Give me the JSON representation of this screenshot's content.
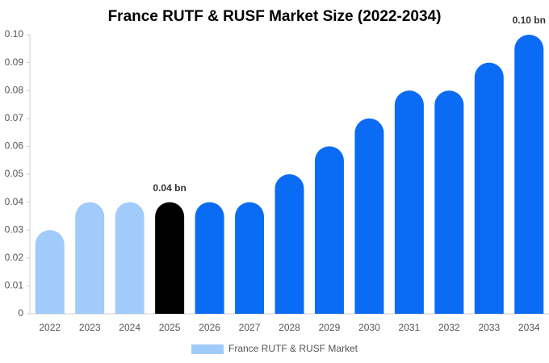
{
  "chart_data": {
    "type": "bar",
    "title": "France RUTF & RUSF Market Size (2022-2034)",
    "categories": [
      "2022",
      "2023",
      "2024",
      "2025",
      "2026",
      "2027",
      "2028",
      "2029",
      "2030",
      "2031",
      "2032",
      "2033",
      "2034"
    ],
    "series": [
      {
        "name": "France RUTF & RUSF Market",
        "color": "#a0cbfb",
        "values": [
          0.03,
          0.04,
          0.04,
          0.04,
          0.04,
          0.04,
          0.05,
          0.06,
          0.07,
          0.08,
          0.08,
          0.09,
          0.1
        ],
        "value_labels": [
          null,
          null,
          null,
          "0.04 bn",
          null,
          null,
          null,
          null,
          null,
          null,
          null,
          null,
          "0.10 bn"
        ],
        "point_colors": [
          "#a0cbfb",
          "#a0cbfb",
          "#a0cbfb",
          "#000000",
          "#0a6cf5",
          "#0a6cf5",
          "#0a6cf5",
          "#0a6cf5",
          "#0a6cf5",
          "#0a6cf5",
          "#0a6cf5",
          "#0a6cf5",
          "#0a6cf5"
        ]
      }
    ],
    "ylim": [
      0,
      0.1
    ],
    "yticks": [
      0,
      0.01,
      0.02,
      0.03,
      0.04,
      0.05,
      0.06,
      0.07,
      0.08,
      0.09,
      {
        "value": 0.1,
        "label": "0.10"
      }
    ],
    "grid": false,
    "legend": "bottom"
  }
}
